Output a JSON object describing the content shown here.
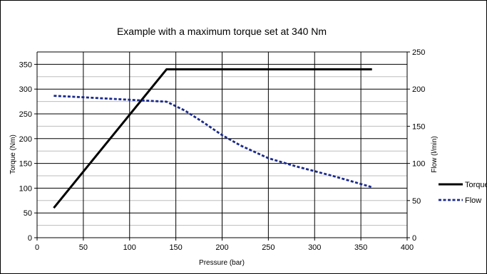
{
  "chart_data": {
    "type": "line",
    "title": "Example with a maximum torque set at 340 Nm",
    "xlabel": "Pressure (bar)",
    "ylabel": "Torque (Nm)",
    "y2label": "Flow (l/min)",
    "xlim": [
      0,
      400
    ],
    "ylim": [
      0,
      375
    ],
    "y2lim": [
      0,
      250
    ],
    "x_ticks": [
      0,
      50,
      100,
      150,
      200,
      250,
      300,
      350,
      400
    ],
    "y_ticks": [
      0,
      50,
      100,
      150,
      200,
      250,
      300,
      350
    ],
    "y2_ticks": [
      0,
      50,
      100,
      150,
      200,
      250
    ],
    "grid": true,
    "legend_position": "right",
    "series": [
      {
        "name": "Torque",
        "axis": "left",
        "style": "solid",
        "color": "#000000",
        "points": [
          [
            18,
            60
          ],
          [
            140,
            340
          ],
          [
            362,
            340
          ]
        ]
      },
      {
        "name": "Flow",
        "axis": "right",
        "style": "dashed",
        "color": "#1a2a8c",
        "points": [
          [
            18,
            191
          ],
          [
            50,
            189
          ],
          [
            80,
            187
          ],
          [
            110,
            185
          ],
          [
            140,
            183
          ],
          [
            160,
            171
          ],
          [
            180,
            155
          ],
          [
            200,
            138
          ],
          [
            220,
            124
          ],
          [
            250,
            107
          ],
          [
            280,
            96
          ],
          [
            320,
            83
          ],
          [
            362,
            68
          ]
        ]
      }
    ]
  }
}
